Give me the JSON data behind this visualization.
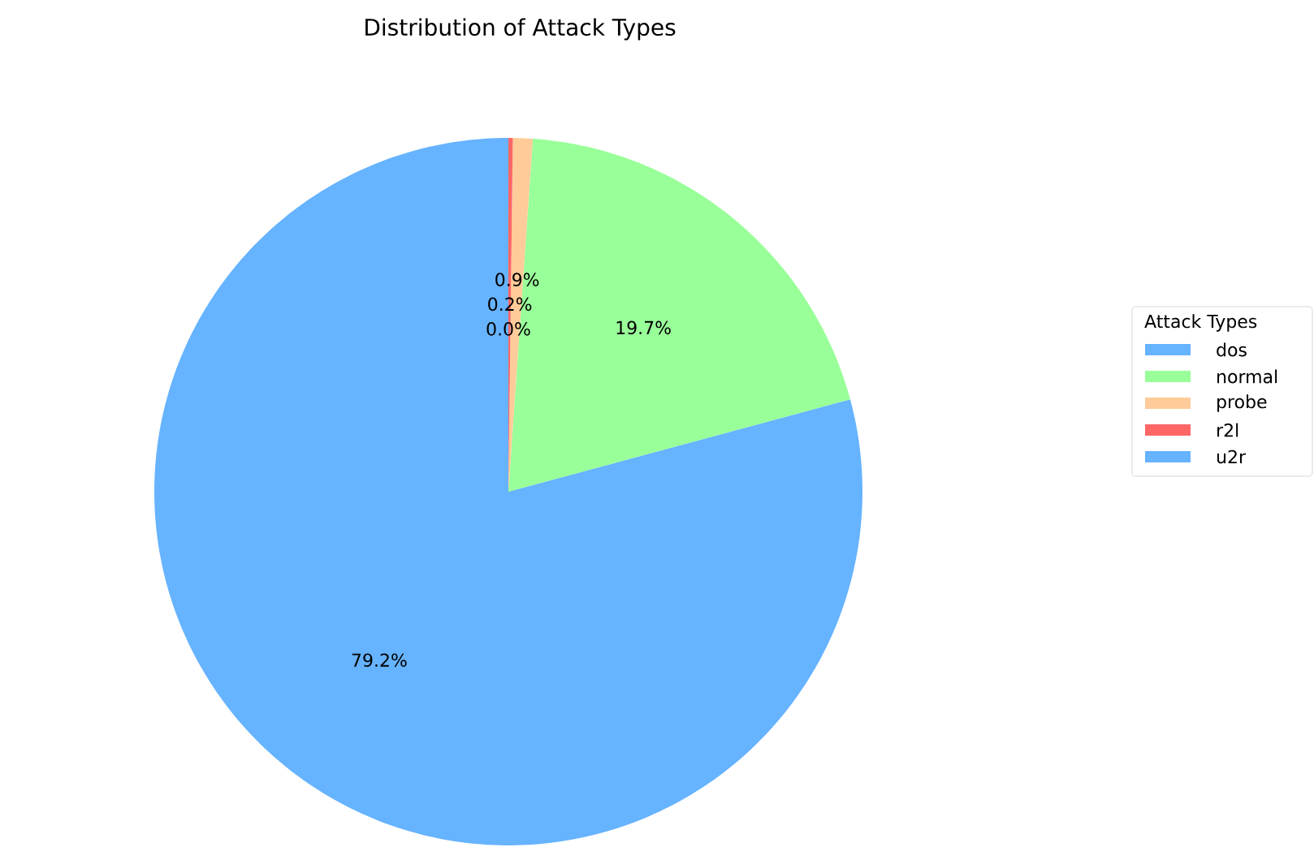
{
  "chart_data": {
    "type": "pie",
    "title": "Distribution of Attack Types",
    "legend_title": "Attack Types",
    "legend": "right",
    "categories": [
      "dos",
      "normal",
      "probe",
      "r2l",
      "u2r"
    ],
    "values": [
      79.2,
      19.7,
      0.9,
      0.2,
      0.0
    ],
    "value_labels": [
      "79.2%",
      "19.7%",
      "0.9%",
      "0.2%",
      "0.0%"
    ],
    "colors": [
      "#66b3ff",
      "#99ff99",
      "#ffcc99",
      "#ff6666",
      "#66b3ff"
    ]
  }
}
